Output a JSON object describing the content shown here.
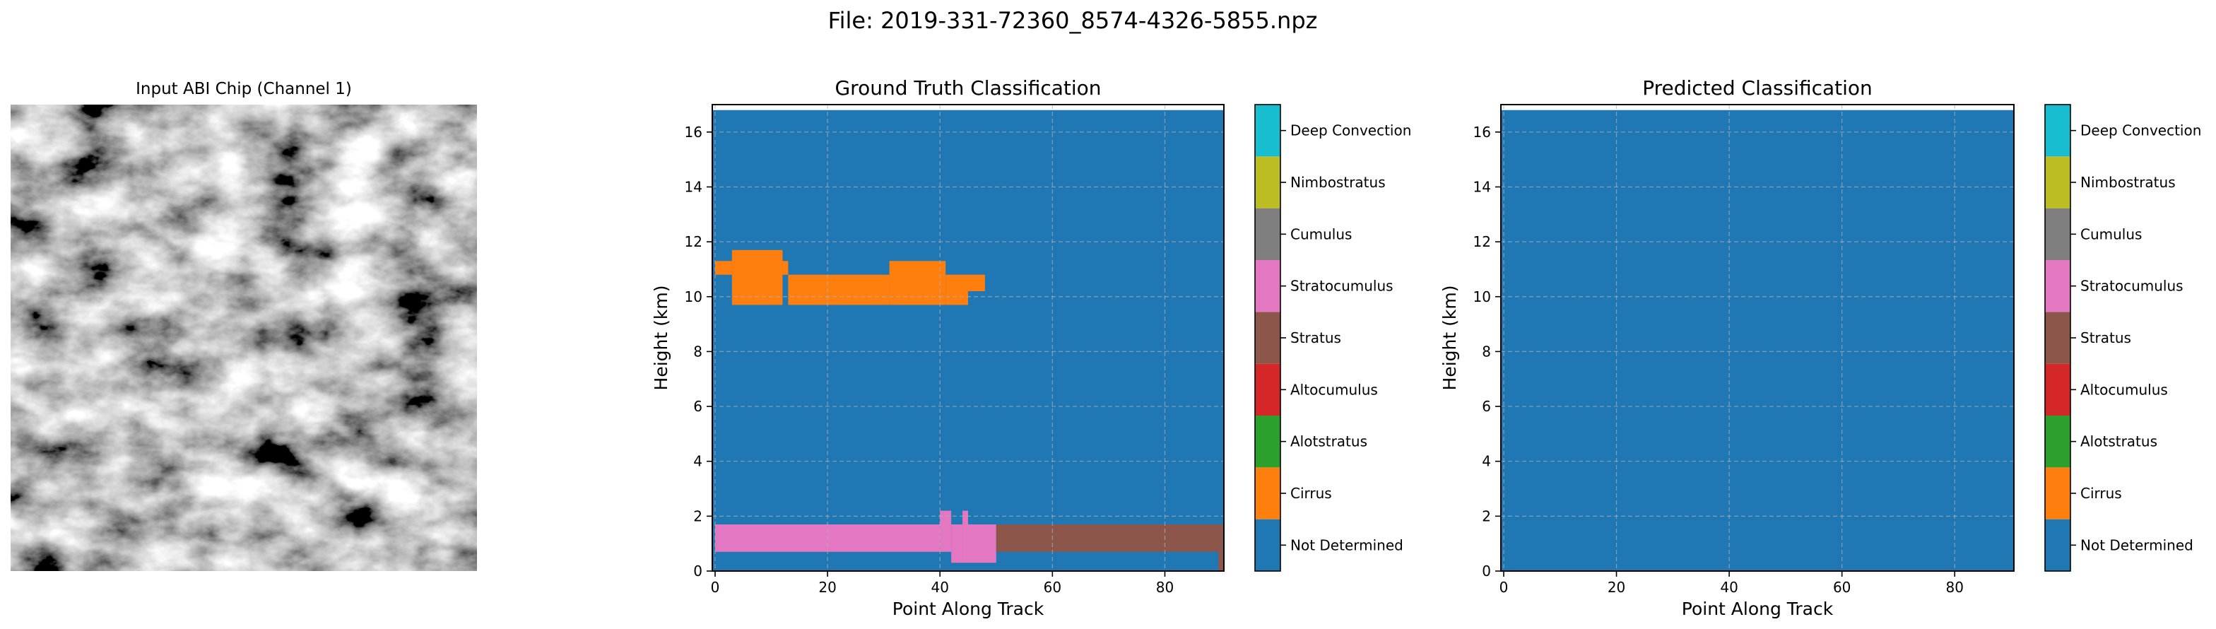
{
  "figure_title": "File: 2019-331-72360_8574-4326-5855.npz",
  "input_panel": {
    "title": "Input ABI Chip (Channel 1)",
    "colormap": "grayscale"
  },
  "colors": {
    "Not Determined": "#1f77b4",
    "Cirrus": "#ff7f0e",
    "Alotstratus": "#2ca02c",
    "Altocumulus": "#d62728",
    "Stratus": "#8c564b",
    "Stratocumulus": "#e377c2",
    "Cumulus": "#7f7f7f",
    "Nimbostratus": "#bcbd22",
    "Deep Convection": "#17becf"
  },
  "chart_data": [
    {
      "type": "heatmap",
      "title": "Ground Truth Classification",
      "xlabel": "Point Along Track",
      "ylabel": "Height (km)",
      "xlim": [
        -0.5,
        90.5
      ],
      "ylim": [
        0,
        17
      ],
      "data_ylim": [
        0,
        16.8
      ],
      "xticks": [
        0,
        20,
        40,
        60,
        80
      ],
      "yticks": [
        0,
        2,
        4,
        6,
        8,
        10,
        12,
        14,
        16
      ],
      "grid": true,
      "background_class": "Not Determined",
      "regions": [
        {
          "class": "Cirrus",
          "x": [
            0,
            3
          ],
          "y": [
            10.8,
            11.3
          ]
        },
        {
          "class": "Cirrus",
          "x": [
            3,
            12
          ],
          "y": [
            9.7,
            11.7
          ]
        },
        {
          "class": "Cirrus",
          "x": [
            12,
            13
          ],
          "y": [
            10.8,
            11.3
          ]
        },
        {
          "class": "Cirrus",
          "x": [
            13,
            31
          ],
          "y": [
            9.7,
            10.8
          ]
        },
        {
          "class": "Cirrus",
          "x": [
            31,
            41
          ],
          "y": [
            9.7,
            11.3
          ]
        },
        {
          "class": "Cirrus",
          "x": [
            41,
            45
          ],
          "y": [
            9.7,
            10.8
          ]
        },
        {
          "class": "Cirrus",
          "x": [
            45,
            48
          ],
          "y": [
            10.2,
            10.8
          ]
        },
        {
          "class": "Stratocumulus",
          "x": [
            0,
            40
          ],
          "y": [
            0.7,
            1.7
          ]
        },
        {
          "class": "Stratocumulus",
          "x": [
            40,
            42
          ],
          "y": [
            0.7,
            2.2
          ]
        },
        {
          "class": "Stratocumulus",
          "x": [
            42,
            44
          ],
          "y": [
            0.3,
            1.7
          ]
        },
        {
          "class": "Stratocumulus",
          "x": [
            44,
            45
          ],
          "y": [
            0.3,
            2.2
          ]
        },
        {
          "class": "Stratocumulus",
          "x": [
            45,
            50
          ],
          "y": [
            0.3,
            1.7
          ]
        },
        {
          "class": "Stratus",
          "x": [
            50,
            89.5
          ],
          "y": [
            0.7,
            1.7
          ]
        },
        {
          "class": "Stratus",
          "x": [
            89.5,
            90.5
          ],
          "y": [
            0.0,
            1.7
          ]
        }
      ],
      "colorbar": {
        "labels": [
          "Not Determined",
          "Cirrus",
          "Alotstratus",
          "Altocumulus",
          "Stratus",
          "Stratocumulus",
          "Cumulus",
          "Nimbostratus",
          "Deep Convection"
        ]
      }
    },
    {
      "type": "heatmap",
      "title": "Predicted Classification",
      "xlabel": "Point Along Track",
      "ylabel": "Height (km)",
      "xlim": [
        -0.5,
        90.5
      ],
      "ylim": [
        0,
        17
      ],
      "data_ylim": [
        0,
        16.8
      ],
      "xticks": [
        0,
        20,
        40,
        60,
        80
      ],
      "yticks": [
        0,
        2,
        4,
        6,
        8,
        10,
        12,
        14,
        16
      ],
      "grid": true,
      "background_class": "Not Determined",
      "regions": [],
      "colorbar": {
        "labels": [
          "Not Determined",
          "Cirrus",
          "Alotstratus",
          "Altocumulus",
          "Stratus",
          "Stratocumulus",
          "Cumulus",
          "Nimbostratus",
          "Deep Convection"
        ]
      }
    }
  ]
}
